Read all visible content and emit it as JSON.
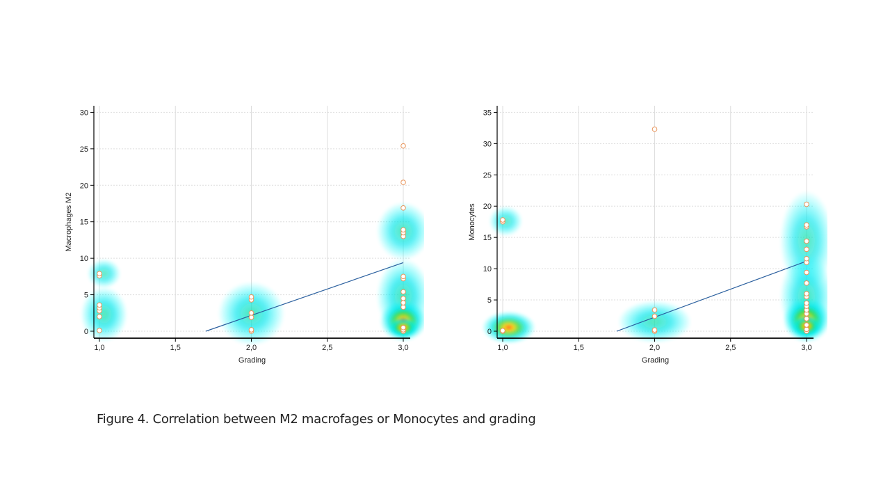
{
  "caption": "Figure 4. Correlation between M2 macrofages or Monocytes and grading",
  "colors": {
    "points": "#e8945a",
    "regression_line": "#2a5f9e",
    "grid": "#dddddd"
  },
  "chart_data": [
    {
      "type": "scatter",
      "xlabel": "Grading",
      "ylabel": "Macrophages M2",
      "xlim": [
        1.0,
        3.0
      ],
      "ylim": [
        0,
        30
      ],
      "xticks": [
        1.0,
        1.5,
        2.0,
        2.5,
        3.0
      ],
      "xtick_labels": [
        "1,0",
        "1,5",
        "2,0",
        "2,5",
        "3,0"
      ],
      "yticks": [
        0,
        5,
        10,
        15,
        20,
        25,
        30
      ],
      "ytick_labels": [
        "0",
        "5",
        "10",
        "15",
        "20",
        "25",
        "30"
      ],
      "grid": true,
      "density_overlay": true,
      "points": [
        {
          "x": 1.0,
          "y": 0.1
        },
        {
          "x": 1.0,
          "y": 2.0
        },
        {
          "x": 1.0,
          "y": 2.8
        },
        {
          "x": 1.0,
          "y": 3.2
        },
        {
          "x": 1.0,
          "y": 3.6
        },
        {
          "x": 1.0,
          "y": 7.6
        },
        {
          "x": 1.0,
          "y": 7.9
        },
        {
          "x": 2.0,
          "y": 0.0
        },
        {
          "x": 2.0,
          "y": 0.2
        },
        {
          "x": 2.0,
          "y": 1.9
        },
        {
          "x": 2.0,
          "y": 2.5
        },
        {
          "x": 2.0,
          "y": 4.3
        },
        {
          "x": 2.0,
          "y": 4.7
        },
        {
          "x": 3.0,
          "y": 0.0
        },
        {
          "x": 3.0,
          "y": 0.2
        },
        {
          "x": 3.0,
          "y": 0.5
        },
        {
          "x": 3.0,
          "y": 3.3
        },
        {
          "x": 3.0,
          "y": 3.9
        },
        {
          "x": 3.0,
          "y": 4.5
        },
        {
          "x": 3.0,
          "y": 5.4
        },
        {
          "x": 3.0,
          "y": 7.2
        },
        {
          "x": 3.0,
          "y": 7.5
        },
        {
          "x": 3.0,
          "y": 13.0
        },
        {
          "x": 3.0,
          "y": 13.5
        },
        {
          "x": 3.0,
          "y": 13.9
        },
        {
          "x": 3.0,
          "y": 16.9
        },
        {
          "x": 3.0,
          "y": 20.4
        },
        {
          "x": 3.0,
          "y": 25.4
        }
      ],
      "regression_line": {
        "x": [
          1.7,
          3.0
        ],
        "y": [
          0.0,
          9.4
        ]
      },
      "density_blobs": [
        {
          "x": 1.03,
          "y": 2.3,
          "sx": 0.07,
          "sy": 1.9,
          "level": 0.5
        },
        {
          "x": 1.03,
          "y": 7.9,
          "sx": 0.05,
          "sy": 1.0,
          "level": 0.3
        },
        {
          "x": 2.0,
          "y": 2.4,
          "sx": 0.1,
          "sy": 2.2,
          "level": 0.5
        },
        {
          "x": 3.0,
          "y": 13.7,
          "sx": 0.08,
          "sy": 2.0,
          "level": 0.45
        },
        {
          "x": 3.0,
          "y": 4.8,
          "sx": 0.08,
          "sy": 2.6,
          "level": 0.55
        },
        {
          "x": 3.0,
          "y": 1.4,
          "sx": 0.07,
          "sy": 1.4,
          "level": 0.75
        },
        {
          "x": 3.0,
          "y": 0.5,
          "sx": 0.045,
          "sy": 0.7,
          "level": 1.0
        }
      ]
    },
    {
      "type": "scatter",
      "xlabel": "Grading",
      "ylabel": "Monocytes",
      "xlim": [
        1.0,
        3.0
      ],
      "ylim": [
        0,
        35
      ],
      "xticks": [
        1.0,
        1.5,
        2.0,
        2.5,
        3.0
      ],
      "xtick_labels": [
        "1,0",
        "1,5",
        "2,0",
        "2,5",
        "3,0"
      ],
      "yticks": [
        0,
        5,
        10,
        15,
        20,
        25,
        30,
        35
      ],
      "ytick_labels": [
        "0",
        "5",
        "10",
        "15",
        "20",
        "25",
        "30",
        "35"
      ],
      "grid": true,
      "density_overlay": true,
      "points": [
        {
          "x": 1.0,
          "y": 0.0
        },
        {
          "x": 1.0,
          "y": 0.1
        },
        {
          "x": 1.0,
          "y": 17.5
        },
        {
          "x": 1.0,
          "y": 17.8
        },
        {
          "x": 2.0,
          "y": 0.0
        },
        {
          "x": 2.0,
          "y": 0.2
        },
        {
          "x": 2.0,
          "y": 2.4
        },
        {
          "x": 2.0,
          "y": 3.4
        },
        {
          "x": 2.0,
          "y": 32.3
        },
        {
          "x": 3.0,
          "y": 0.0
        },
        {
          "x": 3.0,
          "y": 0.3
        },
        {
          "x": 3.0,
          "y": 1.0
        },
        {
          "x": 3.0,
          "y": 2.0
        },
        {
          "x": 3.0,
          "y": 2.8
        },
        {
          "x": 3.0,
          "y": 3.4
        },
        {
          "x": 3.0,
          "y": 4.0
        },
        {
          "x": 3.0,
          "y": 4.5
        },
        {
          "x": 3.0,
          "y": 5.5
        },
        {
          "x": 3.0,
          "y": 6.0
        },
        {
          "x": 3.0,
          "y": 7.7
        },
        {
          "x": 3.0,
          "y": 9.4
        },
        {
          "x": 3.0,
          "y": 11.0
        },
        {
          "x": 3.0,
          "y": 11.6
        },
        {
          "x": 3.0,
          "y": 13.1
        },
        {
          "x": 3.0,
          "y": 14.4
        },
        {
          "x": 3.0,
          "y": 16.7
        },
        {
          "x": 3.0,
          "y": 17.0
        },
        {
          "x": 3.0,
          "y": 20.3
        }
      ],
      "regression_line": {
        "x": [
          1.75,
          3.0
        ],
        "y": [
          0.0,
          11.2
        ]
      },
      "density_blobs": [
        {
          "x": 1.02,
          "y": 17.6,
          "sx": 0.05,
          "sy": 1.2,
          "level": 0.3
        },
        {
          "x": 1.04,
          "y": 0.6,
          "sx": 0.08,
          "sy": 1.3,
          "level": 0.7
        },
        {
          "x": 2.0,
          "y": 1.5,
          "sx": 0.11,
          "sy": 1.7,
          "level": 0.5
        },
        {
          "x": 3.0,
          "y": 14.5,
          "sx": 0.08,
          "sy": 4.0,
          "level": 0.4
        },
        {
          "x": 3.0,
          "y": 5.5,
          "sx": 0.08,
          "sy": 3.4,
          "level": 0.5
        },
        {
          "x": 3.0,
          "y": 1.8,
          "sx": 0.07,
          "sy": 1.8,
          "level": 0.8
        },
        {
          "x": 3.0,
          "y": 0.8,
          "sx": 0.045,
          "sy": 0.9,
          "level": 1.0
        }
      ]
    }
  ]
}
